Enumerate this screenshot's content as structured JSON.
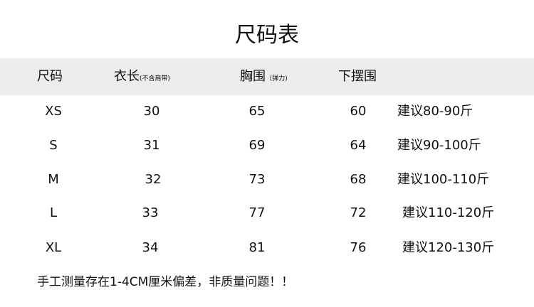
{
  "title": "尺码表",
  "headers": {
    "size": "尺码",
    "length": "衣长",
    "length_note": "(不含肩带)",
    "chest": "胸围",
    "chest_note": "(弹力)",
    "hem": "下摆围"
  },
  "rows": [
    {
      "size": "XS",
      "length": "30",
      "chest": "65",
      "hem": "60",
      "rec": "建议80-90斤"
    },
    {
      "size": "S",
      "length": "31",
      "chest": "69",
      "hem": "64",
      "rec": "建议90-100斤"
    },
    {
      "size": "M",
      "length": "32",
      "chest": "73",
      "hem": "68",
      "rec": "建议100-110斤"
    },
    {
      "size": "L",
      "length": "33",
      "chest": "77",
      "hem": "72",
      "rec": "建议110-120斤"
    },
    {
      "size": "XL",
      "length": "34",
      "chest": "81",
      "hem": "76",
      "rec": "建议120-130斤"
    }
  ],
  "note": "手工测量存在1-4CM厘米偏差，非质量问题！！"
}
